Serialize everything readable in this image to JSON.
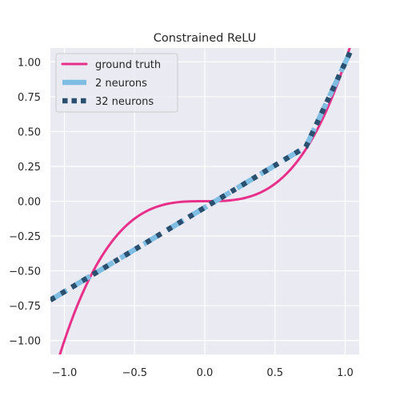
{
  "chart_data": {
    "type": "line",
    "title": "Constrained ReLU",
    "xlabel": "",
    "ylabel": "",
    "xlim": [
      -1.1,
      1.1
    ],
    "ylim": [
      -1.1,
      1.1
    ],
    "x_ticks": [
      -1.0,
      -0.5,
      0.0,
      0.5,
      1.0
    ],
    "x_tick_labels": [
      "−1.0",
      "−0.5",
      "0.0",
      "0.5",
      "1.0"
    ],
    "y_ticks": [
      1.0,
      0.75,
      0.5,
      0.25,
      0.0,
      -0.25,
      -0.5,
      -0.75,
      -1.0
    ],
    "y_tick_labels": [
      "1.00",
      "0.75",
      "0.50",
      "0.25",
      "0.00",
      "−0.25",
      "−0.50",
      "−0.75",
      "−1.00"
    ],
    "grid": true,
    "legend_position": "top-left",
    "colors": {
      "background": "#eaeaf2",
      "grid": "#ffffff",
      "text": "#262626"
    },
    "series": [
      {
        "name": "ground truth",
        "style": "solid",
        "color": "#e8308a",
        "x": [
          -1.1,
          -1.0,
          -0.9,
          -0.8,
          -0.7,
          -0.6,
          -0.5,
          -0.4,
          -0.3,
          -0.2,
          -0.1,
          0.0,
          0.1,
          0.2,
          0.3,
          0.4,
          0.5,
          0.6,
          0.7,
          0.8,
          0.9,
          1.0,
          1.1
        ],
        "y": [
          -1.331,
          -1.0,
          -0.729,
          -0.512,
          -0.343,
          -0.216,
          -0.125,
          -0.064,
          -0.027,
          -0.008,
          -0.001,
          0.0,
          0.001,
          0.008,
          0.027,
          0.064,
          0.125,
          0.216,
          0.343,
          0.512,
          0.729,
          1.0,
          1.331
        ]
      },
      {
        "name": "2 neurons",
        "style": "dashed",
        "color": "#7fbde3",
        "x": [
          -1.1,
          0.72,
          1.1
        ],
        "y": [
          -0.71,
          0.39,
          1.21
        ]
      },
      {
        "name": "32 neurons",
        "style": "dotted",
        "color": "#2b4f6e",
        "x": [
          -1.1,
          0.72,
          1.1
        ],
        "y": [
          -0.71,
          0.39,
          1.21
        ]
      }
    ]
  }
}
